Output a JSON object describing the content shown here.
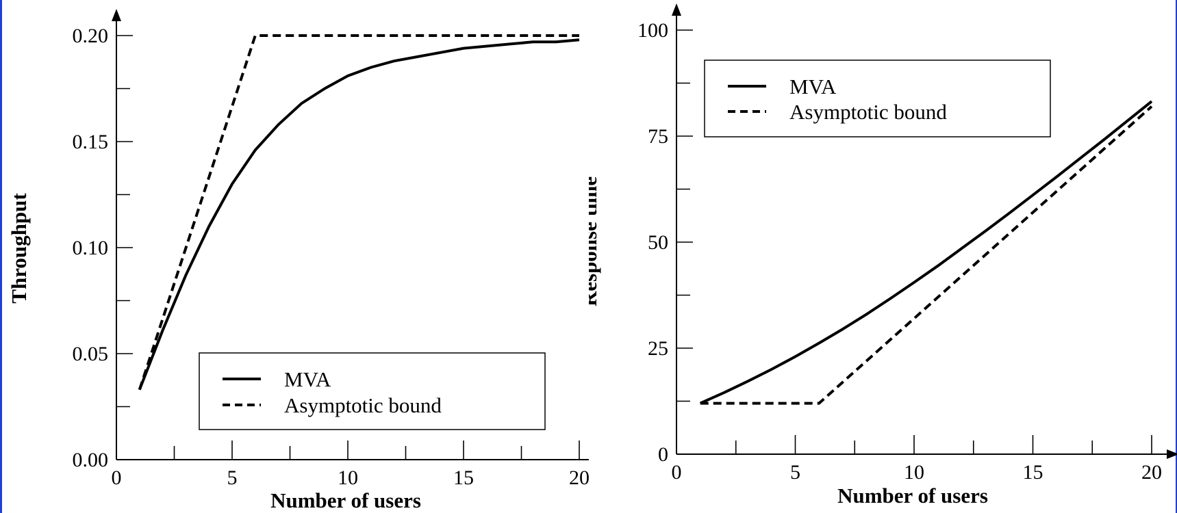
{
  "colors": {
    "frame_edge": "#1f3fd6",
    "ink": "#000000",
    "background": "#ffffff"
  },
  "chart_data": [
    {
      "type": "line",
      "title": "",
      "xlabel": "Number of users",
      "ylabel": "Throughput",
      "xlim": [
        0,
        20.5
      ],
      "ylim": [
        0,
        0.21
      ],
      "xticks": [
        0,
        5,
        10,
        15,
        20
      ],
      "xtick_labels": [
        "0",
        "5",
        "10",
        "15",
        "20"
      ],
      "yticks": [
        0,
        0.05,
        0.1,
        0.15,
        0.2
      ],
      "ytick_labels": [
        "0.00",
        "0.05",
        "0.10",
        "0.15",
        "0.20"
      ],
      "grid": false,
      "legend_position": "bottom-center",
      "series": [
        {
          "name": "MVA",
          "style": "solid",
          "x": [
            1,
            2,
            3,
            4,
            5,
            6,
            7,
            8,
            9,
            10,
            11,
            12,
            13,
            14,
            15,
            16,
            17,
            18,
            19,
            20
          ],
          "y": [
            0.033,
            0.061,
            0.087,
            0.11,
            0.13,
            0.146,
            0.158,
            0.168,
            0.175,
            0.181,
            0.185,
            0.188,
            0.19,
            0.192,
            0.194,
            0.195,
            0.196,
            0.197,
            0.197,
            0.198
          ]
        },
        {
          "name": "Asymptotic bound",
          "style": "dashed",
          "x": [
            1,
            6,
            20
          ],
          "y": [
            0.033,
            0.2,
            0.2
          ]
        }
      ]
    },
    {
      "type": "line",
      "title": "",
      "xlabel": "Number of users",
      "ylabel": "Response time",
      "xlim": [
        0,
        20.5
      ],
      "ylim": [
        0,
        105
      ],
      "xticks": [
        0,
        5,
        10,
        15,
        20
      ],
      "xtick_labels": [
        "0",
        "5",
        "10",
        "15",
        "20"
      ],
      "yticks": [
        0,
        25,
        50,
        75,
        100
      ],
      "ytick_labels": [
        "0",
        "25",
        "50",
        "75",
        "100"
      ],
      "grid": false,
      "legend_position": "top-left",
      "series": [
        {
          "name": "MVA",
          "style": "solid",
          "x": [
            1,
            2,
            3,
            4,
            5,
            6,
            7,
            8,
            9,
            10,
            11,
            12,
            13,
            14,
            15,
            16,
            17,
            18,
            19,
            20
          ],
          "y": [
            12,
            14.5,
            17.2,
            20,
            23,
            26.2,
            29.5,
            33,
            36.7,
            40.5,
            44.4,
            48.5,
            52.6,
            56.8,
            61.1,
            65.4,
            69.8,
            74.2,
            78.7,
            83.2
          ]
        },
        {
          "name": "Asymptotic bound",
          "style": "dashed",
          "x": [
            1,
            6,
            20
          ],
          "y": [
            12,
            12,
            82
          ]
        }
      ]
    }
  ]
}
